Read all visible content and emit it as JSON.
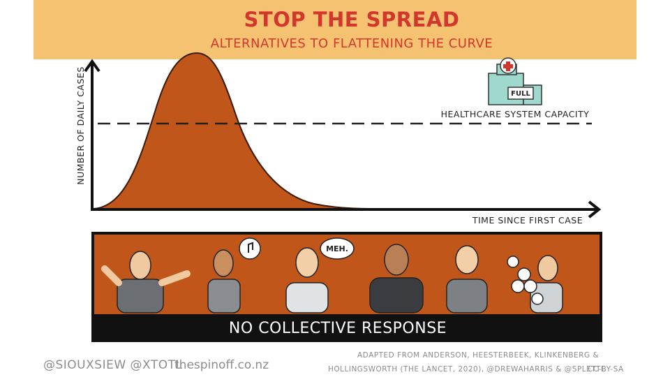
{
  "header": {
    "title": "STOP THE SPREAD",
    "subtitle": "ALTERNATIVES TO FLATTENING THE CURVE"
  },
  "chart": {
    "y_axis_label": "NUMBER OF DAILY CASES",
    "x_axis_label": "TIME SINCE FIRST CASE",
    "capacity_label": "HEALTHCARE SYSTEM CAPACITY",
    "hospital_sign": "FULL"
  },
  "panel": {
    "caption": "NO COLLECTIVE RESPONSE",
    "speech_bubble": "MEH."
  },
  "footer": {
    "handles": "@SIOUXSIEW @XTOTL",
    "website": "thespinoff.co.nz",
    "credit_lines": [
      "ADAPTED FROM ANDERSON, HEESTERBEEK, KLINKENBERG &",
      "HOLLINGSWORTH (THE LANCET, 2020), @DREWAHARRIS & @SPLETTE"
    ],
    "license": "CC-BY-SA"
  }
}
